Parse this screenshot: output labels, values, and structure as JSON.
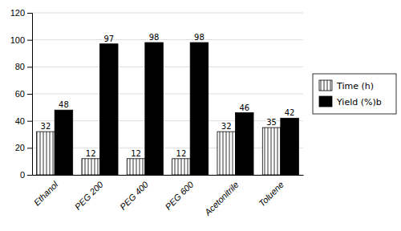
{
  "chart_data": {
    "type": "bar",
    "categories": [
      "Ethanol",
      "PEG 200",
      "PEG 400",
      "PEG 600",
      "Acetonitrile",
      "Toluene"
    ],
    "series": [
      {
        "name": "Time (h)",
        "color": "#ffffff",
        "values": [
          32,
          12,
          12,
          12,
          32,
          35
        ]
      },
      {
        "name": "Yield (%)b",
        "color": "#000000",
        "values": [
          48,
          97,
          98,
          98,
          46,
          42
        ]
      }
    ],
    "ylim": [
      0,
      120
    ],
    "yticks": [
      0,
      20,
      40,
      60,
      80,
      100,
      120
    ],
    "grid": true,
    "legend": "right",
    "data_labels": true
  }
}
